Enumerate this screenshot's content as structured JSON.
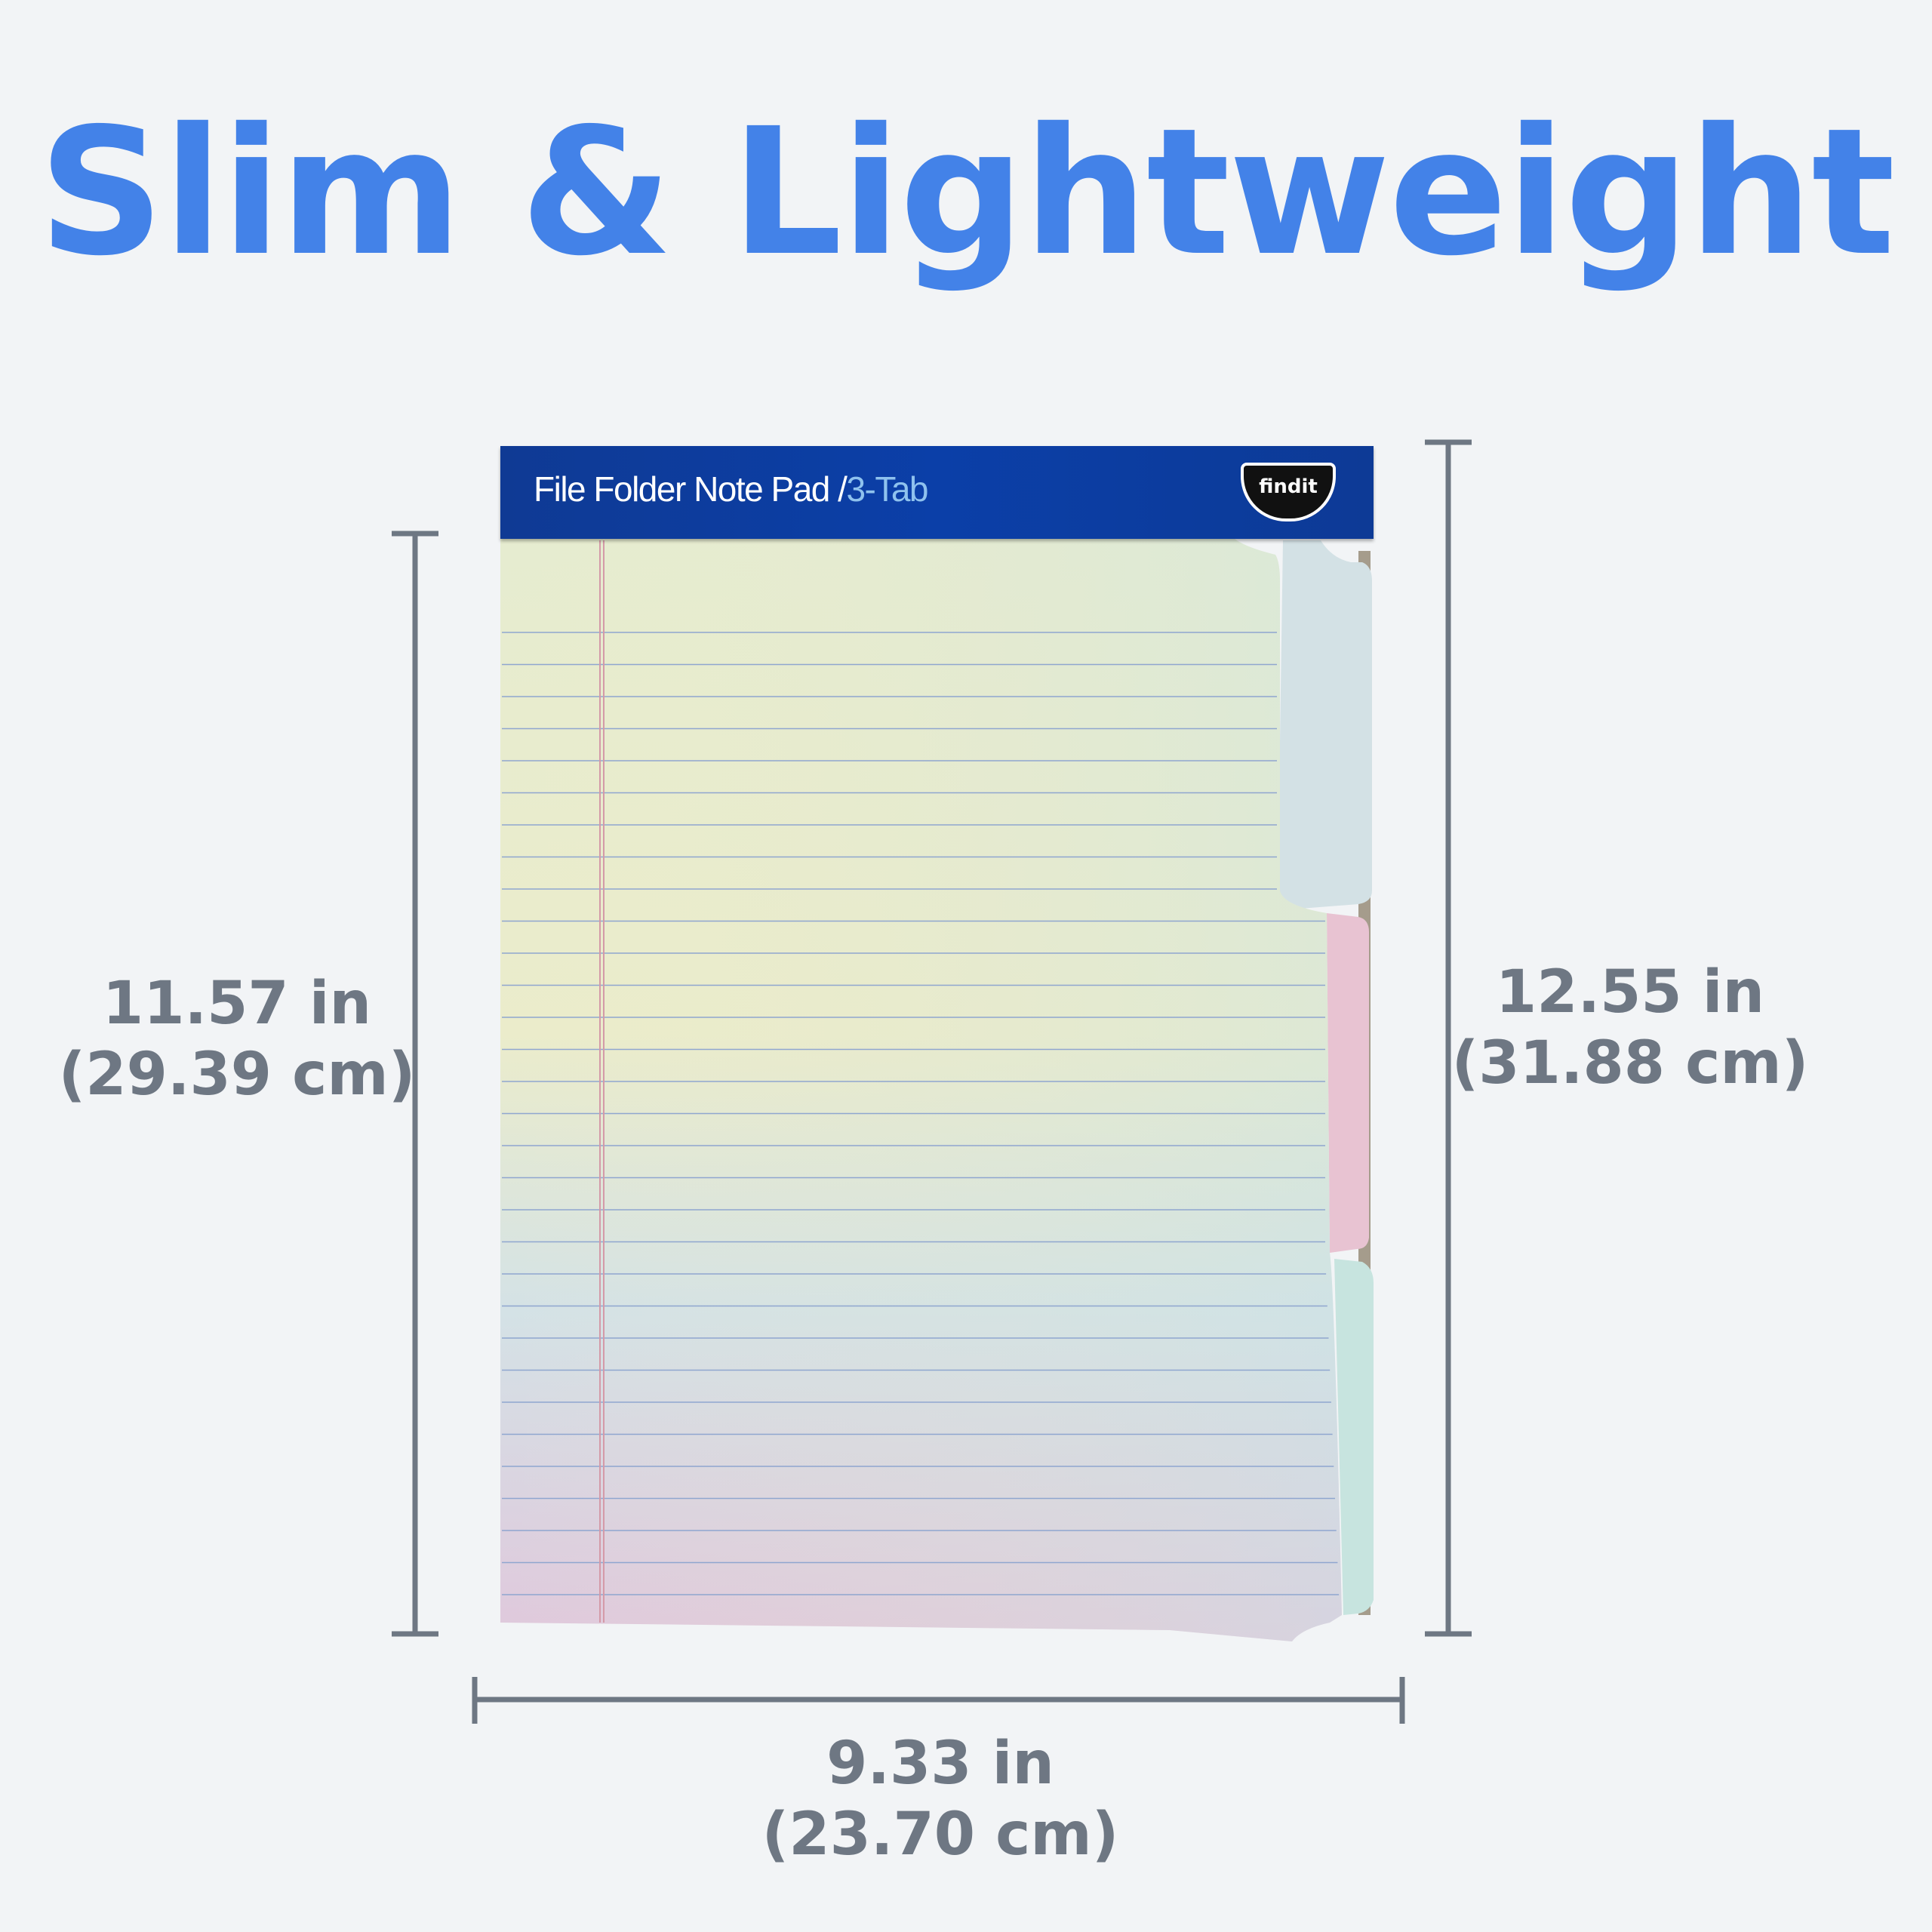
{
  "title": "Slim & Lightweight",
  "product": {
    "name": "File Folder Note Pad",
    "separator": "/",
    "variant": "3-Tab",
    "logo_text": "findit"
  },
  "dimensions": {
    "height_pad": {
      "imperial": "11.57 in",
      "metric": "(29.39 cm)"
    },
    "height_total": {
      "imperial": "12.55 in",
      "metric": "(31.88 cm)"
    },
    "width": {
      "imperial": "9.33 in",
      "metric": "(23.70 cm)"
    }
  },
  "colors": {
    "title": "#4382e8",
    "dimension": "#6e7783",
    "header": "#0b3fa8"
  }
}
